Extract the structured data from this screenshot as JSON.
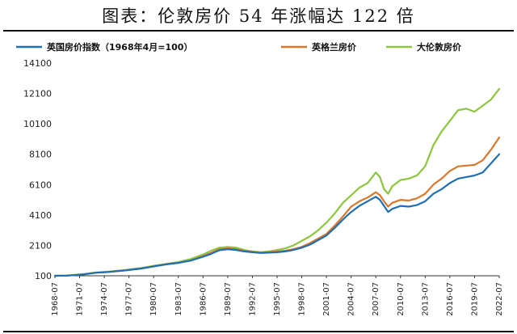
{
  "page": {
    "title": "图表：伦敦房价 54 年涨幅达 122 倍"
  },
  "chart_data": {
    "type": "line",
    "title": "图表：伦敦房价 54 年涨幅达 122 倍",
    "xlabel": "",
    "ylabel": "",
    "ylim": [
      100,
      14100
    ],
    "yticks": [
      100,
      2100,
      4100,
      6100,
      8100,
      10100,
      12100,
      14100
    ],
    "xlim": [
      1968.5,
      2022.5
    ],
    "xticks": [
      "1968-07",
      "1971-07",
      "1974-07",
      "1977-07",
      "1980-07",
      "1983-07",
      "1986-07",
      "1989-07",
      "1992-07",
      "1995-07",
      "1998-07",
      "2001-07",
      "2004-07",
      "2007-07",
      "2010-07",
      "2013-07",
      "2016-07",
      "2019-07",
      "2022-07"
    ],
    "grid": false,
    "legend_position": "top",
    "x": [
      1968.5,
      1970,
      1972,
      1973.5,
      1975,
      1977,
      1979,
      1980.5,
      1982,
      1983.5,
      1985,
      1986.5,
      1987.5,
      1988.5,
      1989.5,
      1990.5,
      1991.5,
      1992.5,
      1993.5,
      1994.5,
      1995.5,
      1996.5,
      1997.5,
      1998.5,
      1999.5,
      2000.5,
      2001.5,
      2002.5,
      2003.5,
      2004.5,
      2005.5,
      2006.5,
      2007.5,
      2008,
      2008.5,
      2009,
      2009.5,
      2010.5,
      2011.5,
      2012.5,
      2013.5,
      2014.5,
      2015.5,
      2016.5,
      2017.5,
      2018.5,
      2019.5,
      2020.5,
      2021.5,
      2022.5
    ],
    "series": [
      {
        "name": "英国房价指数（1968年4月=100）",
        "color": "#1f6fb2",
        "values": [
          100,
          110,
          190,
          300,
          350,
          450,
          580,
          720,
          850,
          950,
          1100,
          1350,
          1550,
          1780,
          1850,
          1800,
          1700,
          1650,
          1600,
          1620,
          1650,
          1700,
          1800,
          1950,
          2150,
          2450,
          2750,
          3250,
          3800,
          4300,
          4700,
          5000,
          5300,
          5100,
          4700,
          4300,
          4500,
          4700,
          4650,
          4750,
          5000,
          5500,
          5800,
          6200,
          6500,
          6600,
          6700,
          6900,
          7500,
          8100
        ]
      },
      {
        "name": "英格兰房价",
        "color": "#d9782d",
        "values": [
          100,
          110,
          190,
          300,
          350,
          450,
          580,
          720,
          850,
          950,
          1100,
          1400,
          1600,
          1850,
          1900,
          1850,
          1750,
          1680,
          1620,
          1650,
          1690,
          1750,
          1850,
          2000,
          2250,
          2550,
          2850,
          3400,
          4000,
          4650,
          5000,
          5250,
          5600,
          5400,
          5000,
          4650,
          4900,
          5100,
          5050,
          5200,
          5500,
          6100,
          6500,
          7000,
          7300,
          7350,
          7400,
          7700,
          8400,
          9200
        ]
      },
      {
        "name": "大伦敦房价",
        "color": "#8cc63f",
        "values": [
          100,
          120,
          210,
          320,
          370,
          470,
          610,
          760,
          880,
          1000,
          1200,
          1500,
          1750,
          1950,
          2000,
          1950,
          1800,
          1700,
          1650,
          1700,
          1800,
          1900,
          2100,
          2400,
          2700,
          3100,
          3600,
          4200,
          4900,
          5400,
          5900,
          6200,
          6900,
          6600,
          5800,
          5500,
          6000,
          6400,
          6500,
          6700,
          7300,
          8700,
          9600,
          10300,
          11000,
          11100,
          10900,
          11300,
          11700,
          12400
        ]
      }
    ]
  },
  "icons": {
    "legend_mark": "legend-line-swatch"
  }
}
